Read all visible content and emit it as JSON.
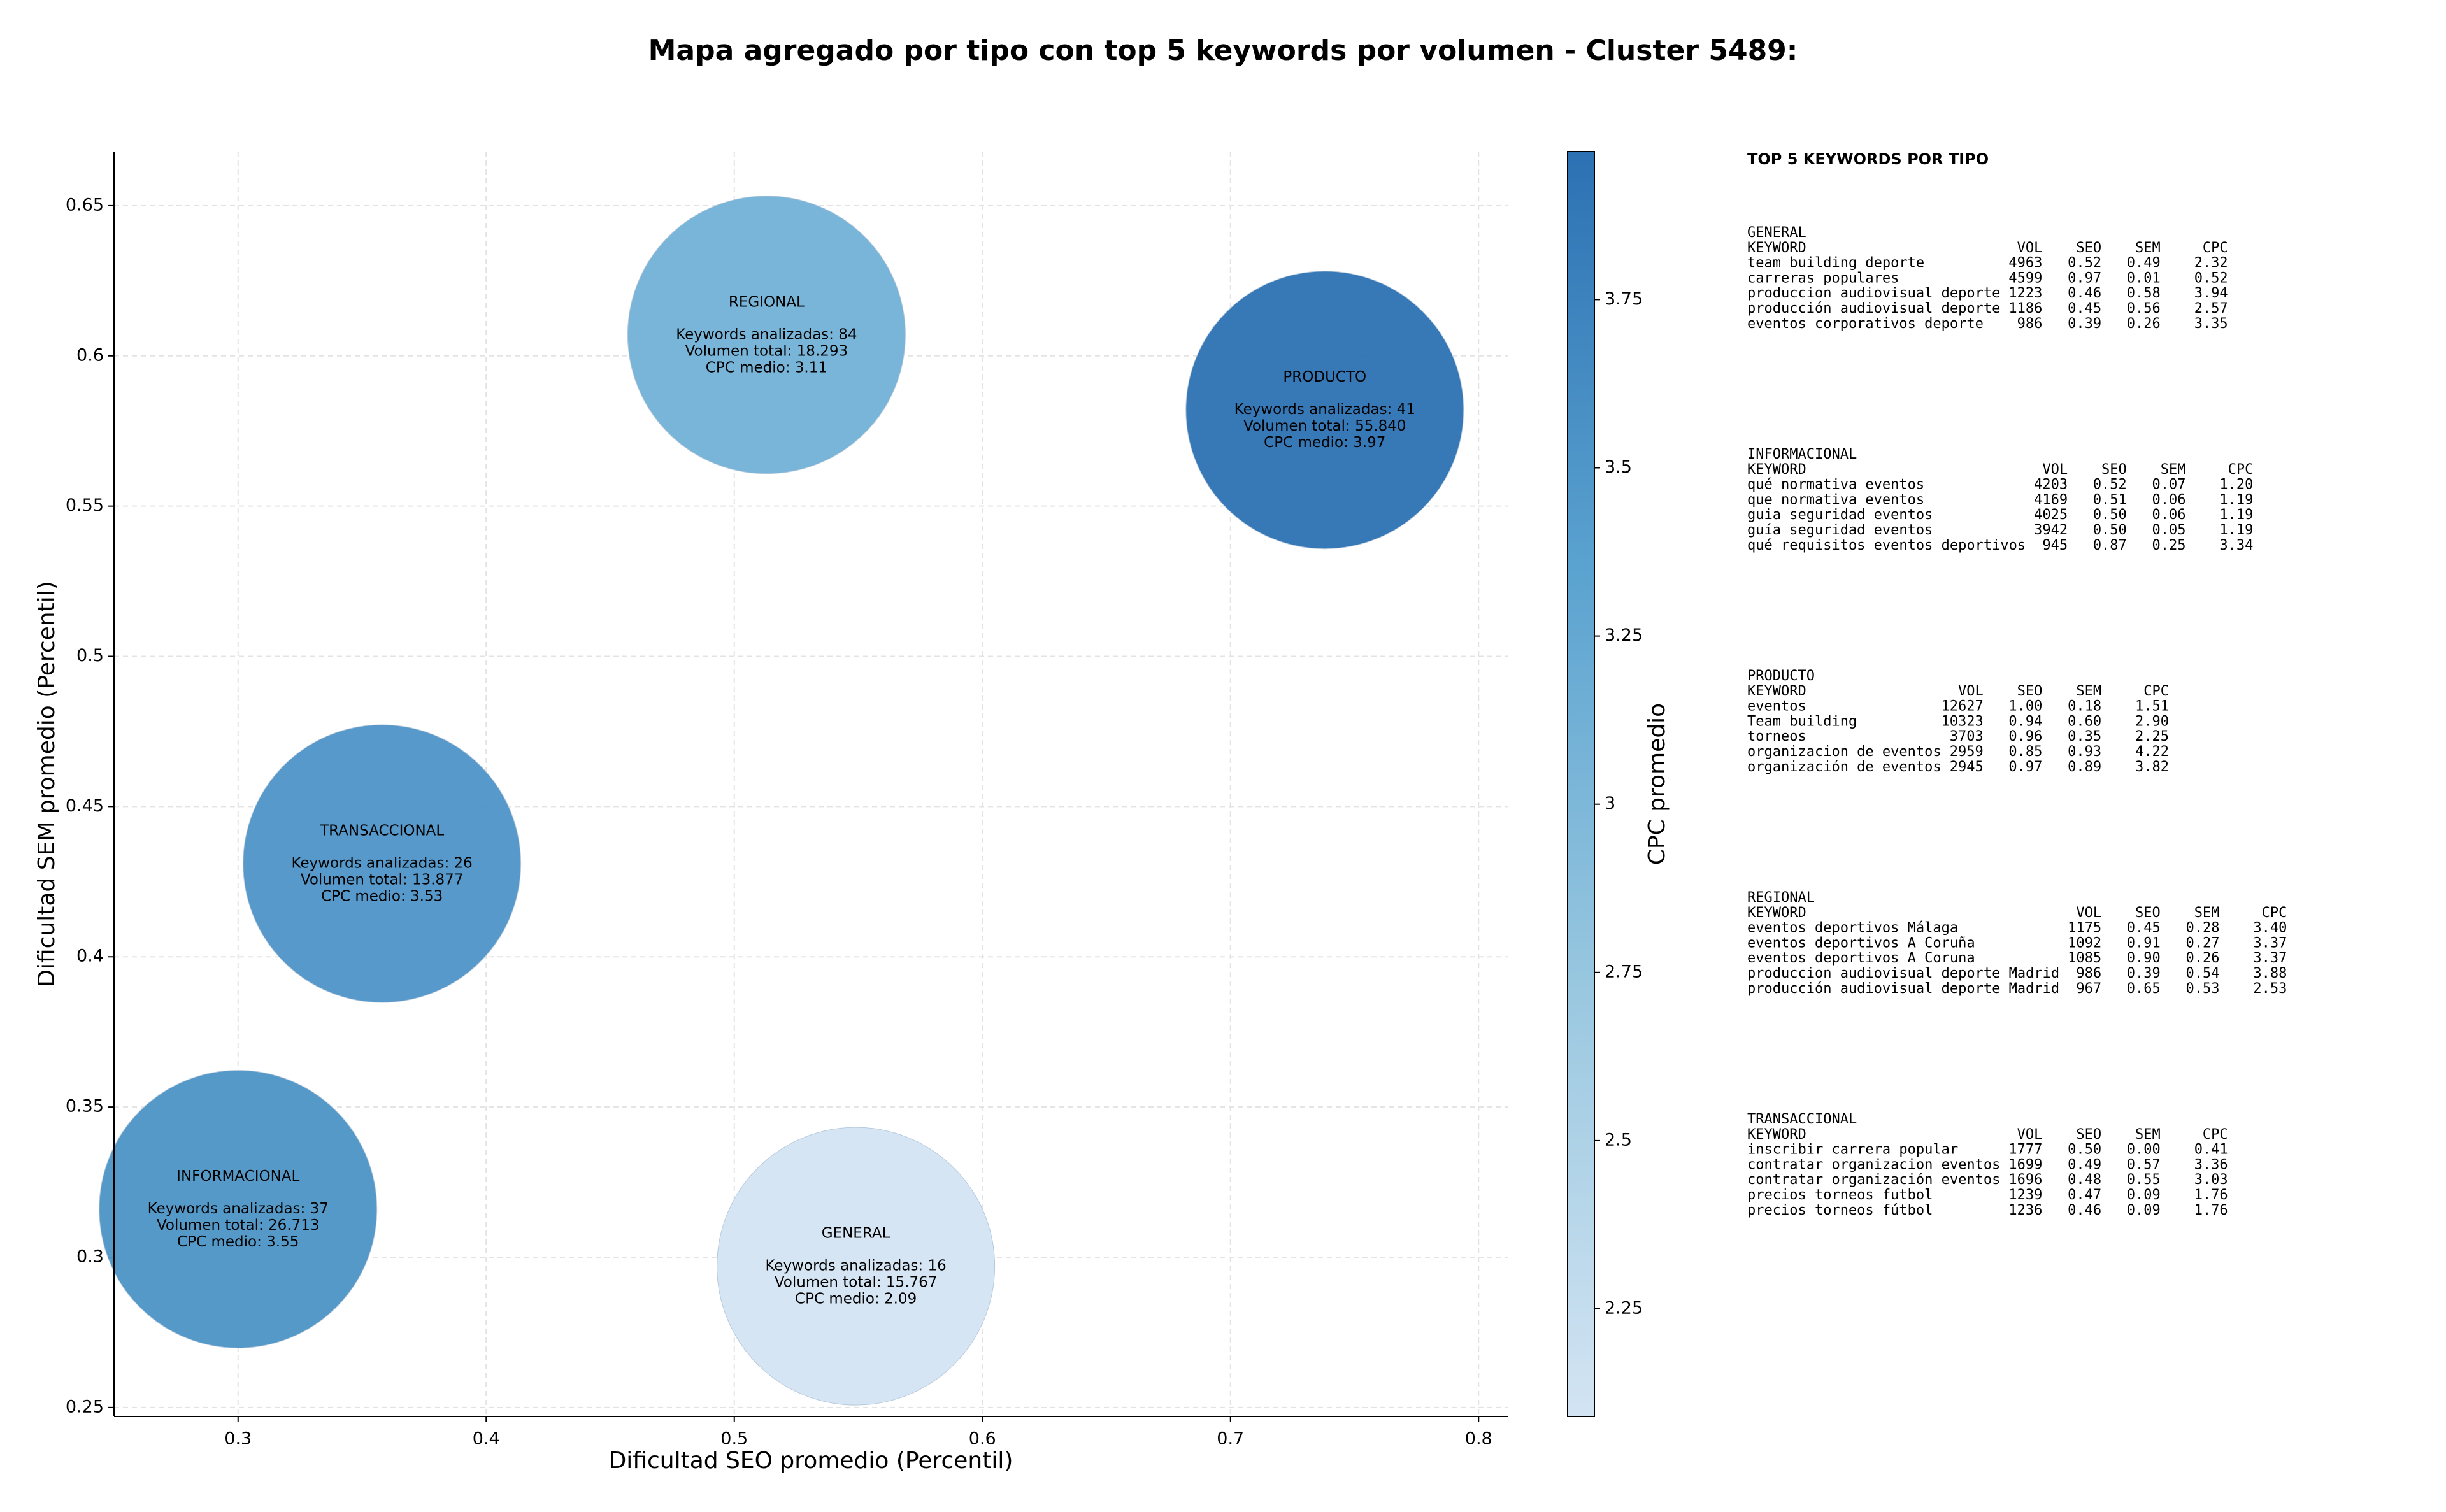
{
  "chart_data": {
    "type": "bubble",
    "title": "Mapa agregado por tipo con top 5 keywords por volumen - Cluster 5489:",
    "x_label": "Dificultad SEO promedio (Percentil)",
    "y_label": "Dificultad SEM promedio (Percentil)",
    "colorbar_label": "CPC promedio",
    "xlim": [
      0.25,
      0.812
    ],
    "xticks": [
      0.3,
      0.4,
      0.5,
      0.6,
      0.7,
      0.8
    ],
    "ylim": [
      0.247,
      0.668
    ],
    "yticks": [
      0.25,
      0.3,
      0.35,
      0.4,
      0.45,
      0.5,
      0.55,
      0.6,
      0.65
    ],
    "clim": [
      2.09,
      3.97
    ],
    "cticks": [
      2.25,
      2.5,
      2.75,
      3.0,
      3.25,
      3.5,
      3.75
    ],
    "colormap": [
      "#d3e4f3",
      "#9ac8e0",
      "#5ba3d0",
      "#2c71b3"
    ],
    "grid": true,
    "bubbles": [
      {
        "label": "REGIONAL",
        "x": 0.513,
        "y": 0.607,
        "cpc": 3.11,
        "lines": [
          "Keywords analizadas: 84",
          "Volumen total: 18.293",
          "CPC medio: 3.11"
        ]
      },
      {
        "label": "PRODUCTO",
        "x": 0.738,
        "y": 0.582,
        "cpc": 3.97,
        "lines": [
          "Keywords analizadas: 41",
          "Volumen total: 55.840",
          "CPC medio: 3.97"
        ]
      },
      {
        "label": "TRANSACCIONAL",
        "x": 0.358,
        "y": 0.431,
        "cpc": 3.53,
        "lines": [
          "Keywords analizadas: 26",
          "Volumen total: 13.877",
          "CPC medio: 3.53"
        ]
      },
      {
        "label": "INFORMACIONAL",
        "x": 0.3,
        "y": 0.316,
        "cpc": 3.55,
        "lines": [
          "Keywords analizadas: 37",
          "Volumen total: 26.713",
          "CPC medio: 3.55"
        ]
      },
      {
        "label": "GENERAL",
        "x": 0.549,
        "y": 0.297,
        "cpc": 2.09,
        "lines": [
          "Keywords analizadas: 16",
          "Volumen total: 15.767",
          "CPC medio: 2.09"
        ]
      }
    ]
  },
  "panel": {
    "title": "TOP 5 KEYWORDS POR TIPO",
    "sections": [
      {
        "name": "GENERAL",
        "header": [
          "KEYWORD",
          "VOL",
          "SEO",
          "SEM",
          "CPC"
        ],
        "rows": [
          [
            "team building deporte",
            "4963",
            "0.52",
            "0.49",
            "2.32"
          ],
          [
            "carreras populares",
            "4599",
            "0.97",
            "0.01",
            "0.52"
          ],
          [
            "produccion audiovisual deporte",
            "1223",
            "0.46",
            "0.58",
            "3.94"
          ],
          [
            "producción audiovisual deporte",
            "1186",
            "0.45",
            "0.56",
            "2.57"
          ],
          [
            "eventos corporativos deporte",
            "986",
            "0.39",
            "0.26",
            "3.35"
          ]
        ]
      },
      {
        "name": "INFORMACIONAL",
        "header": [
          "KEYWORD",
          "VOL",
          "SEO",
          "SEM",
          "CPC"
        ],
        "rows": [
          [
            "qué normativa eventos",
            "4203",
            "0.52",
            "0.07",
            "1.20"
          ],
          [
            "que normativa eventos",
            "4169",
            "0.51",
            "0.06",
            "1.19"
          ],
          [
            "guia seguridad eventos",
            "4025",
            "0.50",
            "0.06",
            "1.19"
          ],
          [
            "guía seguridad eventos",
            "3942",
            "0.50",
            "0.05",
            "1.19"
          ],
          [
            "qué requisitos eventos deportivos",
            "945",
            "0.87",
            "0.25",
            "3.34"
          ]
        ]
      },
      {
        "name": "PRODUCTO",
        "header": [
          "KEYWORD",
          "VOL",
          "SEO",
          "SEM",
          "CPC"
        ],
        "rows": [
          [
            "eventos",
            "12627",
            "1.00",
            "0.18",
            "1.51"
          ],
          [
            "Team building",
            "10323",
            "0.94",
            "0.60",
            "2.90"
          ],
          [
            "torneos",
            "3703",
            "0.96",
            "0.35",
            "2.25"
          ],
          [
            "organizacion de eventos",
            "2959",
            "0.85",
            "0.93",
            "4.22"
          ],
          [
            "organización de eventos",
            "2945",
            "0.97",
            "0.89",
            "3.82"
          ]
        ]
      },
      {
        "name": "REGIONAL",
        "header": [
          "KEYWORD",
          "VOL",
          "SEO",
          "SEM",
          "CPC"
        ],
        "rows": [
          [
            "eventos deportivos Málaga",
            "1175",
            "0.45",
            "0.28",
            "3.40"
          ],
          [
            "eventos deportivos A Coruña",
            "1092",
            "0.91",
            "0.27",
            "3.37"
          ],
          [
            "eventos deportivos A Coruna",
            "1085",
            "0.90",
            "0.26",
            "3.37"
          ],
          [
            "produccion audiovisual deporte Madrid",
            "986",
            "0.39",
            "0.54",
            "3.88"
          ],
          [
            "producción audiovisual deporte Madrid",
            "967",
            "0.65",
            "0.53",
            "2.53"
          ]
        ]
      },
      {
        "name": "TRANSACCIONAL",
        "header": [
          "KEYWORD",
          "VOL",
          "SEO",
          "SEM",
          "CPC"
        ],
        "rows": [
          [
            "inscribir carrera popular",
            "1777",
            "0.50",
            "0.00",
            "0.41"
          ],
          [
            "contratar organizacion eventos",
            "1699",
            "0.49",
            "0.57",
            "3.36"
          ],
          [
            "contratar organización eventos",
            "1696",
            "0.48",
            "0.55",
            "3.03"
          ],
          [
            "precios torneos futbol",
            "1239",
            "0.47",
            "0.09",
            "1.76"
          ],
          [
            "precios torneos fútbol",
            "1236",
            "0.46",
            "0.09",
            "1.76"
          ]
        ]
      }
    ]
  }
}
